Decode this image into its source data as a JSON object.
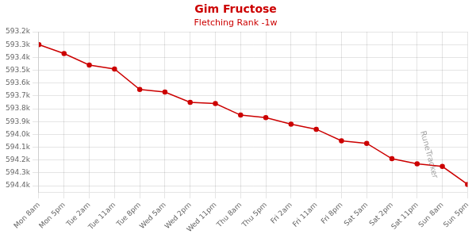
{
  "chart_data": {
    "type": "line",
    "title": "Gim Fructose",
    "subtitle": "Fletching Rank -1w",
    "annotations": [
      "RuneTracker"
    ],
    "categories": [
      "Mon 8am",
      "Mon 5pm",
      "Tue 2am",
      "Tue 11am",
      "Tue 8pm",
      "Wed 5am",
      "Wed 2pm",
      "Wed 11pm",
      "Thu 8am",
      "Thu 5pm",
      "Fri 2am",
      "Fri 11am",
      "Fri 8pm",
      "Sat 5am",
      "Sat 2pm",
      "Sat 11pm",
      "Sun 8am",
      "Sun 5pm"
    ],
    "values": [
      593300,
      593370,
      593460,
      593490,
      593650,
      593670,
      593750,
      593760,
      593850,
      593870,
      593920,
      593960,
      594050,
      594070,
      594190,
      594230,
      594250,
      594390
    ],
    "color": "#cc0000",
    "marker": "circle",
    "ylim": [
      594450,
      593200
    ],
    "yticks": [
      {
        "value": 593200,
        "label": "593.2k"
      },
      {
        "value": 593300,
        "label": "593.3k"
      },
      {
        "value": 593400,
        "label": "593.4k"
      },
      {
        "value": 593500,
        "label": "593.5k"
      },
      {
        "value": 593600,
        "label": "593.6k"
      },
      {
        "value": 593700,
        "label": "593.7k"
      },
      {
        "value": 593800,
        "label": "593.8k"
      },
      {
        "value": 593900,
        "label": "593.9k"
      },
      {
        "value": 594000,
        "label": "594.0k"
      },
      {
        "value": 594100,
        "label": "594.1k"
      },
      {
        "value": 594200,
        "label": "594.2k"
      },
      {
        "value": 594300,
        "label": "594.3k"
      },
      {
        "value": 594400,
        "label": "594.4k"
      }
    ],
    "grid": true
  }
}
